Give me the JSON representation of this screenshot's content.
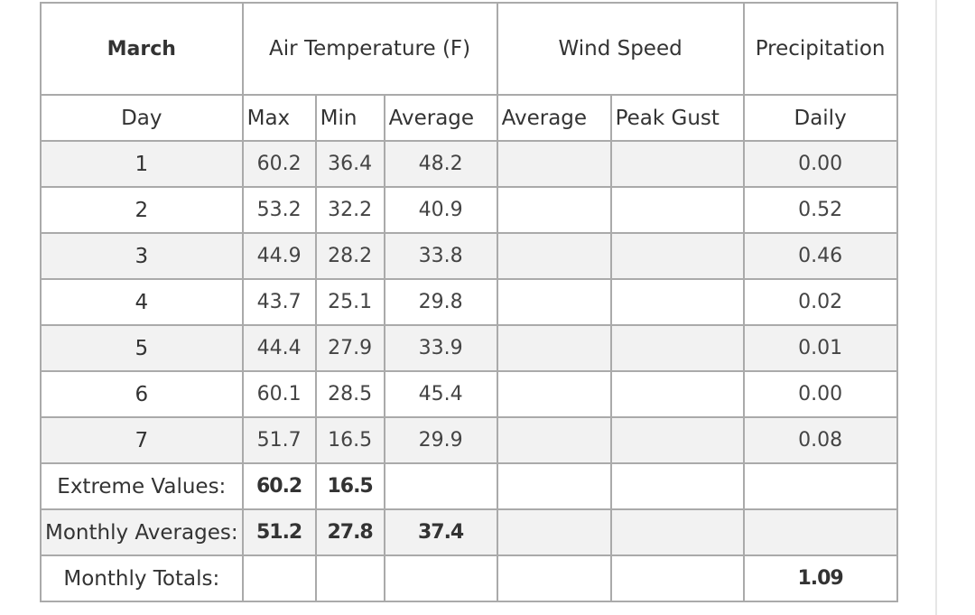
{
  "table": {
    "header": {
      "month": "March",
      "groups": [
        "Air Temperature (F)",
        "Wind Speed",
        "Precipitation"
      ],
      "columns": [
        "Day",
        "Max",
        "Min",
        "Average",
        "Average",
        "Peak Gust",
        "Daily"
      ]
    },
    "rows": [
      {
        "day": "1",
        "max": "60.2",
        "min": "36.4",
        "avg": "48.2",
        "precip": "0.00"
      },
      {
        "day": "2",
        "max": "53.2",
        "min": "32.2",
        "avg": "40.9",
        "precip": "0.52"
      },
      {
        "day": "3",
        "max": "44.9",
        "min": "28.2",
        "avg": "33.8",
        "precip": "0.46"
      },
      {
        "day": "4",
        "max": "43.7",
        "min": "25.1",
        "avg": "29.8",
        "precip": "0.02"
      },
      {
        "day": "5",
        "max": "44.4",
        "min": "27.9",
        "avg": "33.9",
        "precip": "0.01"
      },
      {
        "day": "6",
        "max": "60.1",
        "min": "28.5",
        "avg": "45.4",
        "precip": "0.00"
      },
      {
        "day": "7",
        "max": "51.7",
        "min": "16.5",
        "avg": "29.9",
        "precip": "0.08"
      }
    ],
    "summary": [
      {
        "label": "Extreme Values:",
        "max": "60.2",
        "min": "16.5"
      },
      {
        "label": "Monthly Averages:",
        "max": "51.2",
        "min": "27.8",
        "avg": "37.4"
      },
      {
        "label": "Monthly Totals:",
        "precip": "1.09"
      }
    ]
  }
}
